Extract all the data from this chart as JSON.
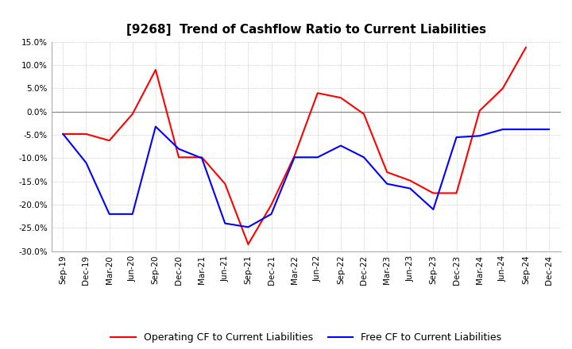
{
  "title": "[9268]  Trend of Cashflow Ratio to Current Liabilities",
  "x_labels": [
    "Sep-19",
    "Dec-19",
    "Mar-20",
    "Jun-20",
    "Sep-20",
    "Dec-20",
    "Mar-21",
    "Jun-21",
    "Sep-21",
    "Dec-21",
    "Mar-22",
    "Jun-22",
    "Sep-22",
    "Dec-22",
    "Mar-23",
    "Jun-23",
    "Sep-23",
    "Dec-23",
    "Mar-24",
    "Jun-24",
    "Sep-24",
    "Dec-24"
  ],
  "operating_cf": [
    -0.048,
    -0.048,
    -0.062,
    -0.005,
    0.09,
    -0.098,
    -0.098,
    -0.155,
    -0.285,
    -0.2,
    -0.095,
    0.04,
    0.03,
    -0.005,
    -0.13,
    -0.148,
    -0.175,
    -0.175,
    0.002,
    0.05,
    0.138,
    null
  ],
  "free_cf": [
    -0.048,
    -0.11,
    -0.22,
    -0.22,
    -0.032,
    -0.08,
    -0.1,
    -0.24,
    -0.248,
    -0.22,
    -0.098,
    -0.098,
    -0.073,
    -0.098,
    -0.155,
    -0.165,
    -0.21,
    -0.055,
    -0.052,
    -0.038,
    -0.038,
    -0.038
  ],
  "ylim": [
    -0.3,
    0.15
  ],
  "yticks": [
    -0.3,
    -0.25,
    -0.2,
    -0.15,
    -0.1,
    -0.05,
    0.0,
    0.05,
    0.1,
    0.15
  ],
  "operating_color": "#FF0000",
  "free_color": "#0000FF",
  "background_color": "#FFFFFF",
  "grid_color": "#AAAAAA",
  "zero_line_color": "#888888",
  "title_fontsize": 11,
  "legend_fontsize": 9,
  "tick_fontsize": 7.5
}
